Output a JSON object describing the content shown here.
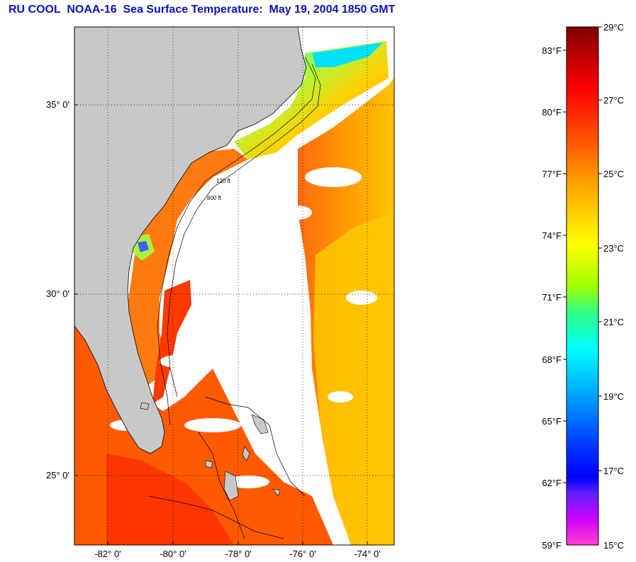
{
  "title": {
    "org": "RU COOL",
    "satellite": "NOAA-16",
    "product": "Sea Surface Temperature:",
    "datetime": "May 19, 2004 1850 GMT"
  },
  "map": {
    "lon_ticks": [
      "-82° 0'",
      "-80° 0'",
      "-78° 0'",
      "-76° 0'",
      "-74° 0'"
    ],
    "lat_ticks": [
      "35° 0'",
      "30° 0'",
      "25° 0'"
    ],
    "contour_labels": [
      "120 ft",
      "600 ft"
    ],
    "colors": {
      "land": "#c8c8c8",
      "no_data": "#ffffff",
      "grid": "#000000"
    }
  },
  "colorbar": {
    "fahrenheit": [
      "83°F",
      "80°F",
      "77°F",
      "74°F",
      "71°F",
      "68°F",
      "65°F",
      "62°F",
      "59°F"
    ],
    "celsius": [
      "29°C",
      "27°C",
      "25°C",
      "23°C",
      "21°C",
      "19°C",
      "17°C",
      "15°C"
    ],
    "gradient_stops": [
      "#800000",
      "#ff0000",
      "#ff5500",
      "#ffc000",
      "#ffff00",
      "#80ff00",
      "#00ffa0",
      "#00ffff",
      "#0080ff",
      "#0000ff",
      "#8000ff",
      "#ff00ff",
      "#ff66cc"
    ]
  }
}
